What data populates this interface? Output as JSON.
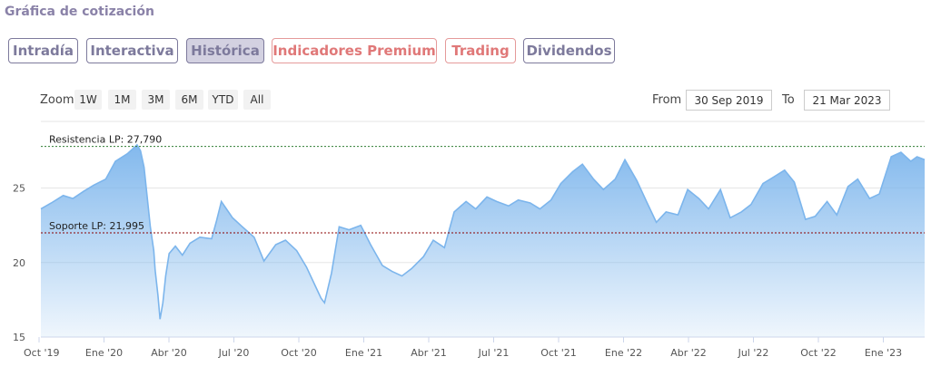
{
  "header": {
    "title": "Gráfica de cotización"
  },
  "tabs": [
    {
      "label": "Intradía",
      "active": false,
      "color": "#7d7a9c"
    },
    {
      "label": "Interactiva",
      "active": false,
      "color": "#7d7a9c"
    },
    {
      "label": "Histórica",
      "active": true,
      "color": "#7d7a9c"
    },
    {
      "label": "Indicadores Premium",
      "active": false,
      "color": "#e07878"
    },
    {
      "label": "Trading",
      "active": false,
      "color": "#e07878"
    },
    {
      "label": "Dividendos",
      "active": false,
      "color": "#7d7a9c"
    }
  ],
  "zoom": {
    "label": "Zoom",
    "buttons": [
      "1W",
      "1M",
      "3M",
      "6M",
      "YTD",
      "All"
    ]
  },
  "range": {
    "from_label": "From",
    "from_value": "30 Sep 2019",
    "to_label": "To",
    "to_value": "21 Mar 2023"
  },
  "chart_data": {
    "type": "area",
    "title": "",
    "xlabel": "",
    "ylabel": "",
    "x_tick_labels": [
      "Oct '19",
      "Ene '20",
      "Abr '20",
      "Jul '20",
      "Oct '20",
      "Ene '21",
      "Abr '21",
      "Jul '21",
      "Oct '21",
      "Ene '22",
      "Abr '22",
      "Jul '22",
      "Oct '22",
      "Ene '23"
    ],
    "y_ticks": [
      15,
      20,
      25
    ],
    "ylim": [
      15,
      28.5
    ],
    "x_range": [
      "2019-09-30",
      "2023-03-21"
    ],
    "grid": true,
    "series_color": "#7cb5ec",
    "series": [
      {
        "x": [
          "2019-09-30",
          "2019-10-15",
          "2019-11-01",
          "2019-11-15",
          "2019-12-01",
          "2019-12-15",
          "2020-01-01",
          "2020-01-15",
          "2020-02-01",
          "2020-02-15",
          "2020-02-20",
          "2020-02-25",
          "2020-03-01",
          "2020-03-05",
          "2020-03-10",
          "2020-03-12",
          "2020-03-16",
          "2020-03-19",
          "2020-03-23",
          "2020-03-27",
          "2020-04-01",
          "2020-04-10",
          "2020-04-20",
          "2020-05-01",
          "2020-05-15",
          "2020-06-01",
          "2020-06-08",
          "2020-06-15",
          "2020-07-01",
          "2020-07-15",
          "2020-08-01",
          "2020-08-15",
          "2020-09-01",
          "2020-09-15",
          "2020-10-01",
          "2020-10-15",
          "2020-10-30",
          "2020-11-05",
          "2020-11-10",
          "2020-11-20",
          "2020-12-01",
          "2020-12-15",
          "2021-01-01",
          "2021-01-15",
          "2021-02-01",
          "2021-02-15",
          "2021-03-01",
          "2021-03-15",
          "2021-04-01",
          "2021-04-15",
          "2021-05-01",
          "2021-05-15",
          "2021-06-01",
          "2021-06-15",
          "2021-07-01",
          "2021-07-15",
          "2021-08-01",
          "2021-08-15",
          "2021-09-01",
          "2021-09-15",
          "2021-10-01",
          "2021-10-15",
          "2021-11-01",
          "2021-11-15",
          "2021-12-01",
          "2021-12-15",
          "2022-01-01",
          "2022-01-15",
          "2022-02-01",
          "2022-02-15",
          "2022-03-01",
          "2022-03-15",
          "2022-04-01",
          "2022-04-15",
          "2022-05-01",
          "2022-05-15",
          "2022-06-01",
          "2022-06-15",
          "2022-07-01",
          "2022-07-15",
          "2022-08-01",
          "2022-08-15",
          "2022-09-01",
          "2022-09-15",
          "2022-10-01",
          "2022-10-15",
          "2022-11-01",
          "2022-11-15",
          "2022-12-01",
          "2022-12-15",
          "2023-01-01",
          "2023-01-15",
          "2023-02-01",
          "2023-02-15",
          "2023-03-01",
          "2023-03-10",
          "2023-03-21"
        ],
        "y": [
          23.6,
          24.0,
          24.5,
          24.3,
          24.8,
          25.2,
          25.6,
          26.8,
          27.3,
          27.9,
          27.5,
          26.4,
          24.2,
          22.4,
          20.8,
          19.5,
          17.8,
          16.2,
          17.3,
          19.1,
          20.6,
          21.1,
          20.5,
          21.3,
          21.7,
          21.6,
          22.8,
          24.1,
          23.0,
          22.4,
          21.7,
          20.1,
          21.2,
          21.5,
          20.8,
          19.7,
          18.2,
          17.6,
          17.3,
          19.3,
          22.4,
          22.2,
          22.5,
          21.2,
          19.8,
          19.4,
          19.1,
          19.6,
          20.4,
          21.5,
          21.0,
          23.4,
          24.1,
          23.6,
          24.4,
          24.1,
          23.8,
          24.2,
          24.0,
          23.6,
          24.2,
          25.3,
          26.1,
          26.6,
          25.6,
          24.9,
          25.6,
          26.9,
          25.5,
          24.1,
          22.7,
          23.4,
          23.2,
          24.9,
          24.3,
          23.6,
          24.9,
          23.0,
          23.4,
          23.9,
          25.3,
          25.7,
          26.2,
          25.4,
          22.9,
          23.1,
          24.1,
          23.2,
          25.1,
          25.6,
          24.3,
          24.6,
          27.1,
          27.4,
          26.8,
          27.1,
          26.9
        ]
      }
    ],
    "reference_lines": [
      {
        "label": "Resistencia LP: 27,790",
        "value": 27.79,
        "color": "#2e7d32"
      },
      {
        "label": "Soporte LP: 21,995",
        "value": 21.995,
        "color": "#8b0000"
      }
    ]
  }
}
